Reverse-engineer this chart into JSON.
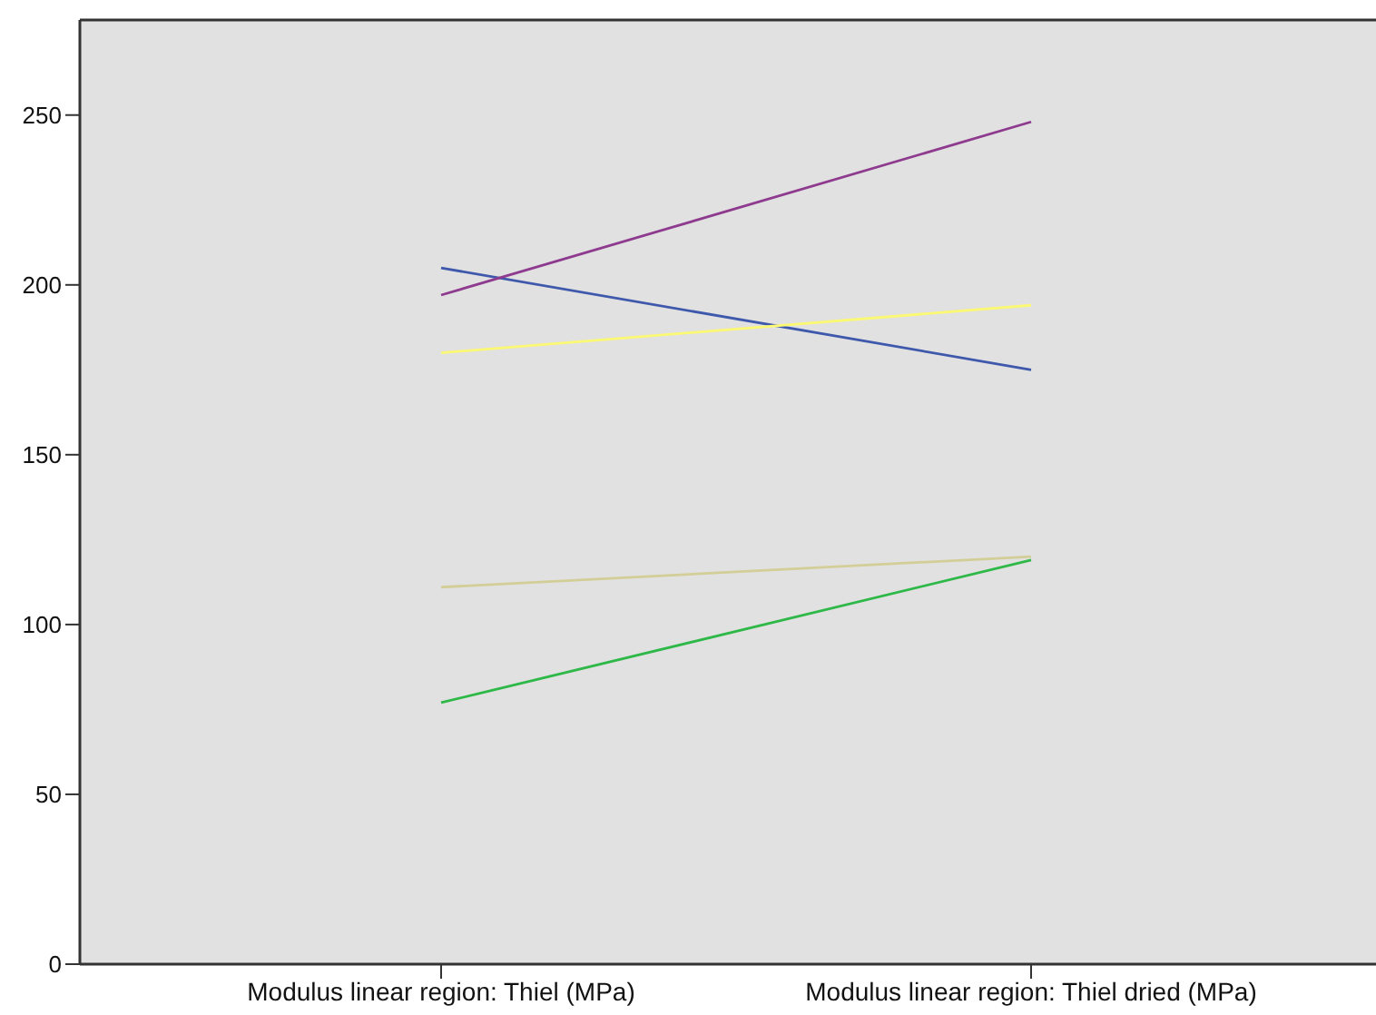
{
  "chart_data": {
    "type": "line",
    "categories": [
      "Modulus linear region: Thiel (MPa)",
      "Modulus linear region: Thiel dried (MPa)"
    ],
    "series": [
      {
        "color": "#3e58ac",
        "values": [
          205,
          175
        ]
      },
      {
        "color": "#2eb848",
        "values": [
          77,
          119
        ]
      },
      {
        "color": "#d3ce97",
        "values": [
          111,
          120
        ]
      },
      {
        "color": "#8e3a8e",
        "values": [
          197,
          248
        ]
      },
      {
        "color": "#fbf873",
        "values": [
          180,
          194
        ]
      }
    ],
    "ylim": [
      0,
      278
    ],
    "yticks": [
      0,
      50,
      100,
      150,
      200,
      250
    ],
    "marker": "none",
    "line_style": "solid"
  }
}
